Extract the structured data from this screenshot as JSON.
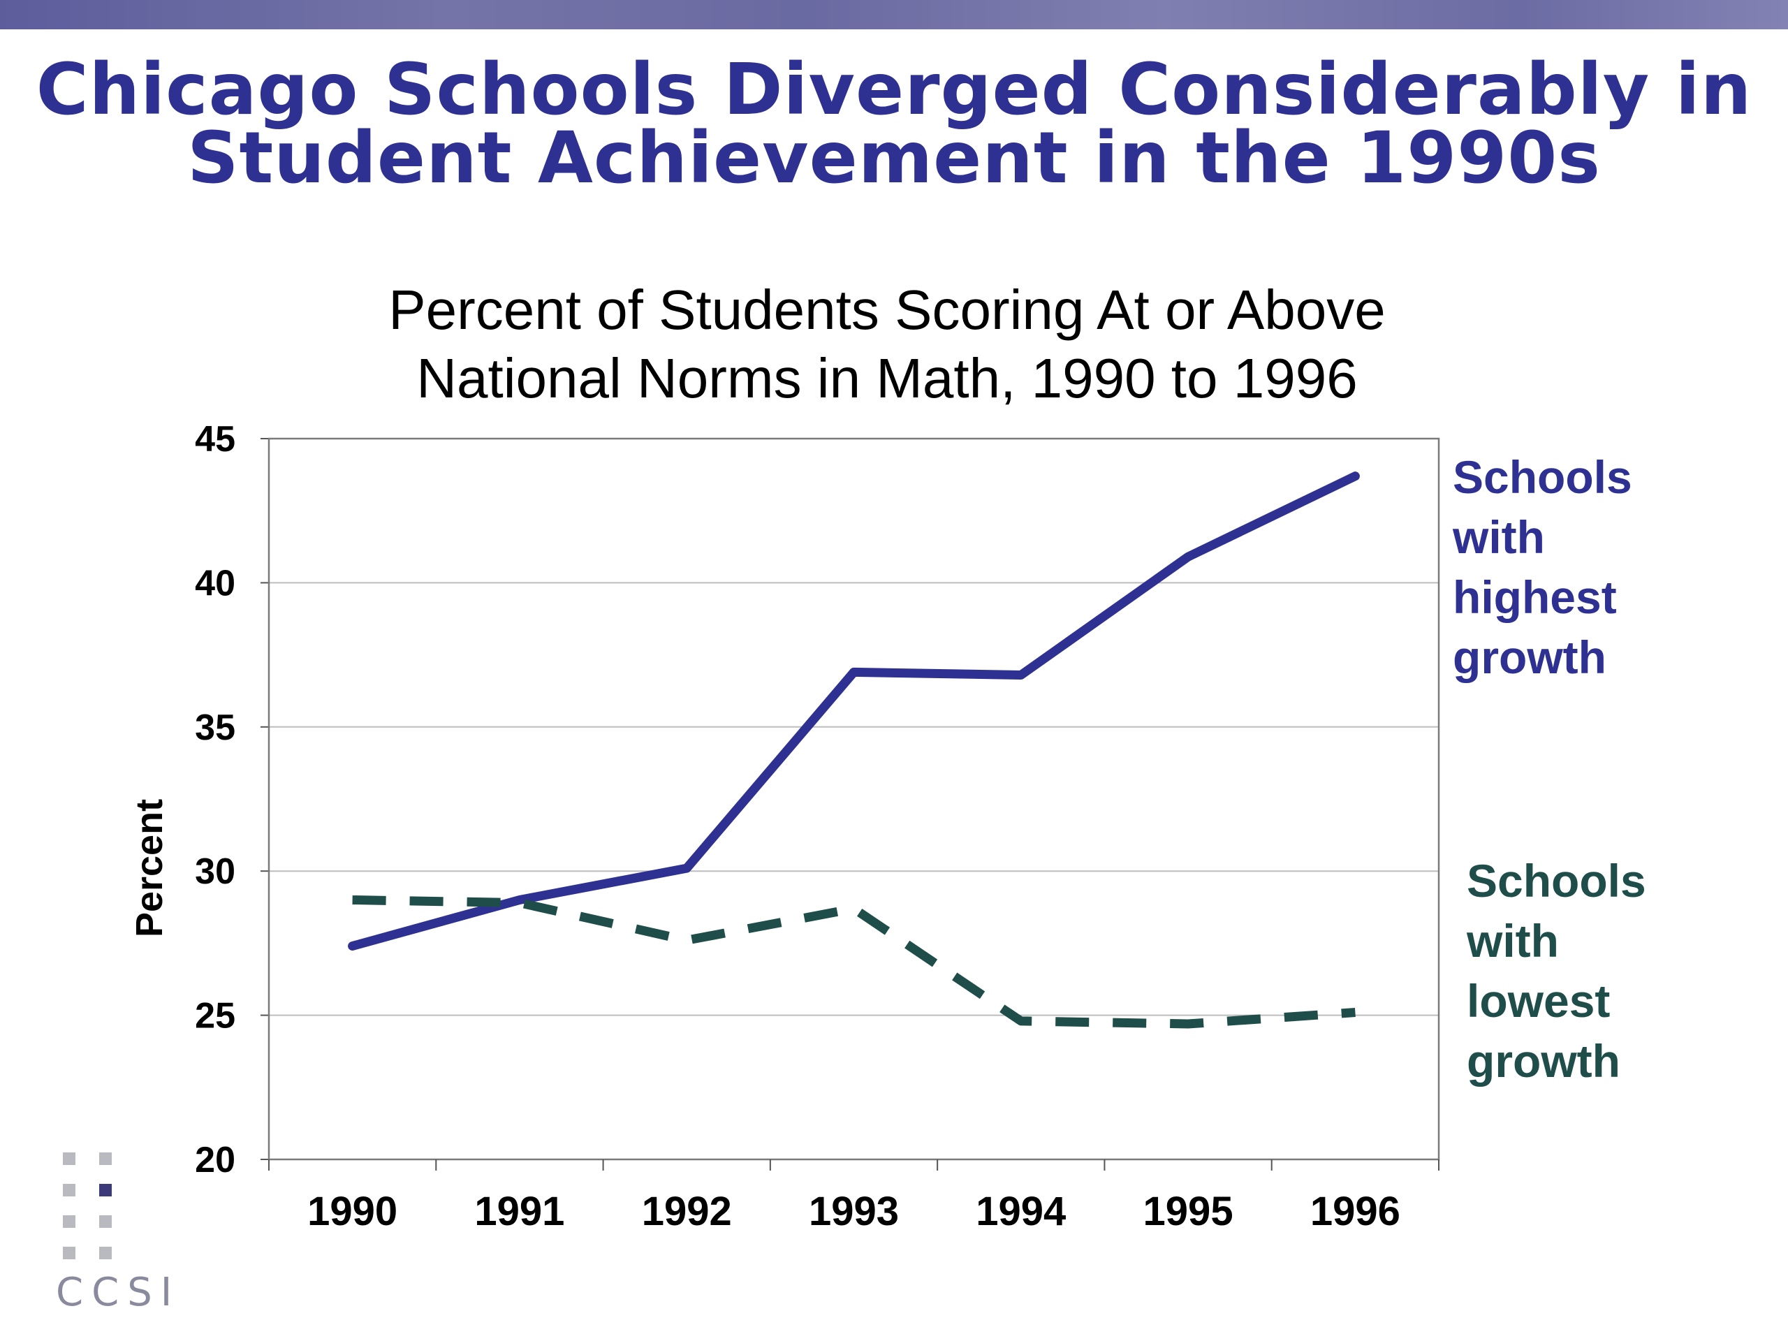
{
  "slide": {
    "title_line1": "Chicago Schools Diverged Considerably in",
    "title_line2": "Student Achievement in the 1990s",
    "logo_text": "CCSI"
  },
  "colors": {
    "accent": "#2e3192",
    "high_series": "#2e3192",
    "low_series": "#1e4d4a",
    "grid": "#bdbdbd"
  },
  "chart_data": {
    "type": "line",
    "title_line1": "Percent of Students Scoring At or Above",
    "title_line2": "National Norms in Math, 1990 to 1996",
    "xlabel": "",
    "ylabel": "Percent",
    "x": [
      "1990",
      "1991",
      "1992",
      "1993",
      "1994",
      "1995",
      "1996"
    ],
    "ylim": [
      20,
      45
    ],
    "yticks": [
      20,
      25,
      30,
      35,
      40,
      45
    ],
    "grid": true,
    "legend": "direct labels at right",
    "series": [
      {
        "name_lines": [
          "Schools",
          "with",
          "highest",
          "growth"
        ],
        "values": [
          27.4,
          29.0,
          30.1,
          36.9,
          36.8,
          40.9,
          43.7
        ],
        "style": "solid",
        "color": "#2e3192"
      },
      {
        "name_lines": [
          "Schools",
          "with",
          "lowest",
          "growth"
        ],
        "values": [
          29.0,
          28.9,
          27.6,
          28.7,
          24.8,
          24.7,
          25.1
        ],
        "style": "dashed",
        "color": "#1e4d4a"
      }
    ]
  }
}
